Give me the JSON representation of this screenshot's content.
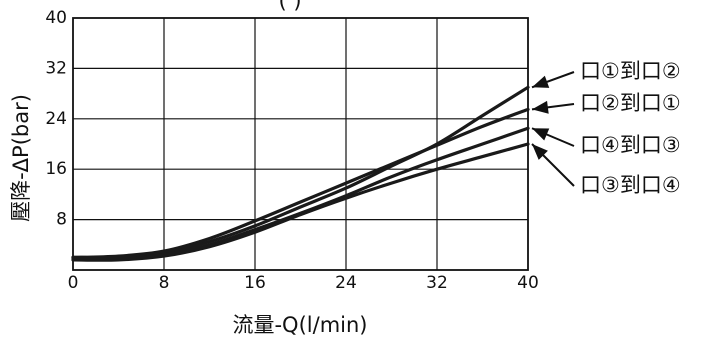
{
  "chart_data": {
    "type": "line",
    "title": "",
    "title_partial": "(   )",
    "xlabel": "流量-Q(l/min)",
    "ylabel": "壓降-ΔP(bar)",
    "xlim": [
      0,
      40
    ],
    "ylim": [
      0,
      40
    ],
    "xticks": [
      "0",
      "8",
      "16",
      "24",
      "32",
      "40"
    ],
    "yticks": [
      "8",
      "16",
      "24",
      "32",
      "40"
    ],
    "grid": true,
    "legend_placement": "right, labels with arrows pointing to line ends",
    "series": [
      {
        "name": "口①到口②",
        "points": [
          [
            0,
            2.0
          ],
          [
            4,
            2.0
          ],
          [
            8,
            2.8
          ],
          [
            12,
            4.5
          ],
          [
            16,
            7.0
          ],
          [
            20,
            10.0
          ],
          [
            24,
            13.0
          ],
          [
            28,
            16.5
          ],
          [
            32,
            20.0
          ],
          [
            36,
            24.5
          ],
          [
            40,
            29.0
          ]
        ]
      },
      {
        "name": "口②到口①",
        "points": [
          [
            0,
            2.0
          ],
          [
            4,
            2.2
          ],
          [
            8,
            3.0
          ],
          [
            12,
            5.0
          ],
          [
            16,
            7.8
          ],
          [
            20,
            10.8
          ],
          [
            24,
            13.8
          ],
          [
            28,
            16.8
          ],
          [
            32,
            19.8
          ],
          [
            36,
            22.8
          ],
          [
            40,
            25.5
          ]
        ]
      },
      {
        "name": "口④到口③",
        "points": [
          [
            0,
            1.8
          ],
          [
            4,
            1.8
          ],
          [
            8,
            2.4
          ],
          [
            12,
            4.0
          ],
          [
            16,
            6.4
          ],
          [
            20,
            9.0
          ],
          [
            24,
            11.8
          ],
          [
            28,
            14.8
          ],
          [
            32,
            17.5
          ],
          [
            36,
            20.0
          ],
          [
            40,
            22.5
          ]
        ]
      },
      {
        "name": "口③到口④",
        "points": [
          [
            0,
            1.6
          ],
          [
            4,
            1.6
          ],
          [
            8,
            2.2
          ],
          [
            12,
            3.7
          ],
          [
            16,
            6.0
          ],
          [
            20,
            8.8
          ],
          [
            24,
            11.4
          ],
          [
            28,
            13.8
          ],
          [
            32,
            16.0
          ],
          [
            36,
            18.0
          ],
          [
            40,
            20.0
          ]
        ]
      }
    ]
  }
}
